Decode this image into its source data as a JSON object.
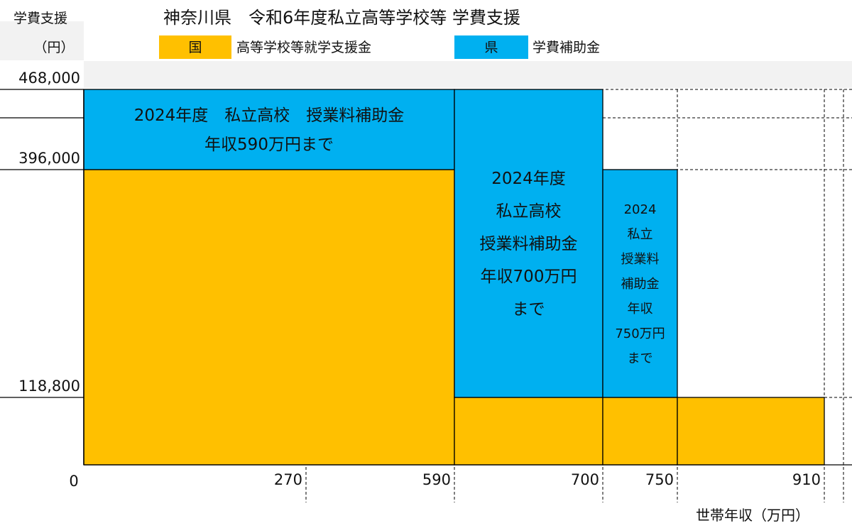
{
  "chart_data": {
    "type": "step-area",
    "title": "神奈川県　令和6年度私立高等学校等 学費支援",
    "ylabel": "学費支援",
    "ylabel_unit": "（円）",
    "xlabel": "世帯年収（万円）",
    "x_origin_label": "0",
    "x_ticks": [
      270,
      590,
      700,
      750,
      910
    ],
    "y_ticks": [
      468000,
      396000,
      118800
    ],
    "y_tick_labels": [
      "468,000",
      "396,000",
      "118,800"
    ],
    "legend": [
      {
        "key": "national",
        "badge": "国",
        "label": "高等学校等就学支援金",
        "color": "#FFC000"
      },
      {
        "key": "prefecture",
        "badge": "県",
        "label": "学費補助金",
        "color": "#00B0F0"
      }
    ],
    "segments": [
      {
        "x_from": 0,
        "x_to": 590,
        "national": 396000,
        "prefecture": 72000
      },
      {
        "x_from": 590,
        "x_to": 700,
        "national": 118800,
        "prefecture": 349200
      },
      {
        "x_from": 700,
        "x_to": 750,
        "national": 118800,
        "prefecture": 277200
      },
      {
        "x_from": 750,
        "x_to": 910,
        "national": 118800,
        "prefecture": 0
      }
    ],
    "annotations": [
      {
        "segment": 0,
        "lines": [
          "2024年度　私立高校　授業料補助金",
          "年収590万円まで"
        ]
      },
      {
        "segment": 1,
        "lines": [
          "2024年度",
          "私立高校",
          "授業料補助金",
          "年収700万円",
          "まで"
        ]
      },
      {
        "segment": 2,
        "lines": [
          "2024",
          "私立",
          "授業料",
          "補助金",
          "年収",
          "750万円",
          "まで"
        ]
      }
    ]
  }
}
